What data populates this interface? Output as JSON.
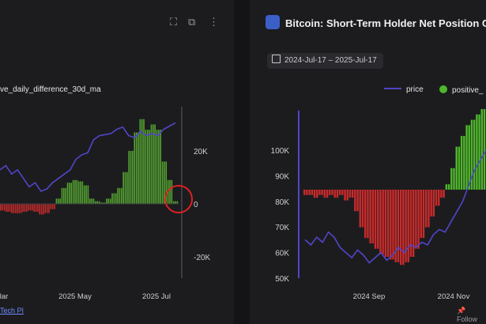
{
  "left_panel": {
    "toolbar_icons": [
      "fullscreen-icon",
      "external-link-icon",
      "more-vertical-icon"
    ],
    "legend_label": "ve_daily_difference_30d_ma",
    "footer_link": "Tech PI",
    "colors": {
      "price": "#5046c8",
      "positive": "#56a832",
      "negative": "#c92b2b",
      "highlight": "#e02020"
    }
  },
  "right_panel": {
    "title": "Bitcoin: Short-Term Holder Net Position C",
    "date_range": "2024-Jul-17 – 2025-Jul-17",
    "legend": [
      {
        "name": "price",
        "icon": "line",
        "color": "#5046c8"
      },
      {
        "name": "positive_",
        "icon": "dot",
        "color": "#4fb82c"
      }
    ],
    "footer_link": "Follow"
  },
  "chart_data": [
    {
      "type": "bar",
      "title": "",
      "xlabel": "",
      "ylabel": "",
      "x_tick_labels": [
        "lar",
        "2025 May",
        "2025 Jul"
      ],
      "y2_ticks": [
        {
          "value": 20000,
          "label": "20K"
        },
        {
          "value": 0,
          "label": "0"
        },
        {
          "value": -20000,
          "label": "-20K"
        }
      ],
      "y2lim": [
        -30000,
        32000
      ],
      "series": [
        {
          "name": "price",
          "type": "line",
          "values": [
            88000,
            90000,
            86000,
            88000,
            84000,
            80000,
            82000,
            78000,
            79000,
            82000,
            84000,
            86000,
            88000,
            93000,
            95000,
            96000,
            102000,
            104000,
            104500,
            105000,
            107000,
            108000,
            104000,
            103000,
            106000,
            104000,
            105000,
            104000,
            107000,
            108500,
            110000
          ]
        },
        {
          "name": "ve_daily_difference_30d_ma",
          "type": "bar",
          "values": [
            -2500,
            -3000,
            -3500,
            -3500,
            -3000,
            -2500,
            -3000,
            -4000,
            -3500,
            -2000,
            2000,
            6000,
            8000,
            9000,
            8500,
            7000,
            2000,
            1000,
            500,
            2000,
            4000,
            6000,
            12000,
            20000,
            27000,
            32000,
            28000,
            30000,
            28000,
            16000,
            9000,
            1000
          ]
        }
      ]
    },
    {
      "type": "bar",
      "title": "Bitcoin: Short-Term Holder Net Position C",
      "xlabel": "",
      "ylabel": "",
      "x_tick_labels": [
        "2024 Sep",
        "2024 Nov"
      ],
      "y_ticks": [
        "100K",
        "90K",
        "80K",
        "70K",
        "60K",
        "50K"
      ],
      "ylim": [
        50000,
        110000
      ],
      "series": [
        {
          "name": "price",
          "type": "line",
          "values": [
            65000,
            63000,
            66000,
            64000,
            68000,
            66000,
            62000,
            60000,
            58000,
            61000,
            59000,
            56000,
            58000,
            60000,
            57000,
            59000,
            62000,
            60000,
            63000,
            62000,
            64000,
            63000,
            67000,
            69000,
            68000,
            72000,
            76000,
            80000,
            86000,
            92000,
            96000,
            100000
          ]
        },
        {
          "name": "positive_",
          "type": "bar",
          "values": [
            -2,
            -2,
            -3,
            -2,
            -3,
            -2,
            -3,
            -2,
            -4,
            -3,
            -8,
            -14,
            -18,
            -20,
            -22,
            -24,
            -25,
            -26,
            -27,
            -28,
            -27,
            -25,
            -22,
            -18,
            -14,
            -10,
            -6,
            -3,
            2,
            8,
            16,
            20,
            24,
            26,
            28,
            30
          ]
        }
      ]
    }
  ]
}
